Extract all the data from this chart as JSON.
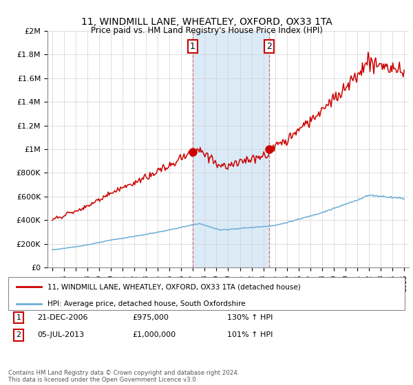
{
  "title": "11, WINDMILL LANE, WHEATLEY, OXFORD, OX33 1TA",
  "subtitle": "Price paid vs. HM Land Registry's House Price Index (HPI)",
  "legend_line1": "11, WINDMILL LANE, WHEATLEY, OXFORD, OX33 1TA (detached house)",
  "legend_line2": "HPI: Average price, detached house, South Oxfordshire",
  "footer": "Contains HM Land Registry data © Crown copyright and database right 2024.\nThis data is licensed under the Open Government Licence v3.0.",
  "transaction1_date": "21-DEC-2006",
  "transaction1_price": "£975,000",
  "transaction1_hpi": "130% ↑ HPI",
  "transaction2_date": "05-JUL-2013",
  "transaction2_price": "£1,000,000",
  "transaction2_hpi": "101% ↑ HPI",
  "hpi_color": "#6baed6",
  "price_color": "#cc0000",
  "shaded_color": "#dbeaf7",
  "background_color": "#ffffff",
  "t1_year": 2006.958,
  "t2_year": 2013.5,
  "p1": 975000,
  "p2": 1000000,
  "ylim": [
    0,
    2000000
  ],
  "xlim_start": 1994.6,
  "xlim_end": 2025.4,
  "shaded_x_start": 2006.958,
  "shaded_x_end": 2013.5
}
